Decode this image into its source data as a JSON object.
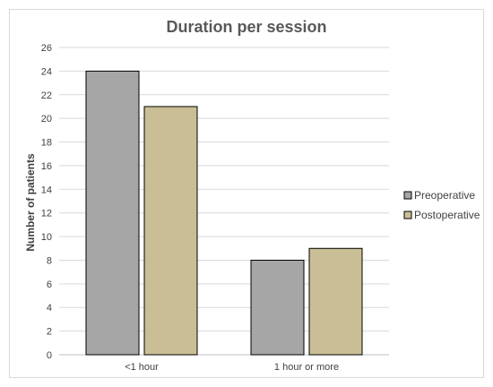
{
  "chart_data": {
    "type": "bar",
    "title": "Duration per session",
    "xlabel": "",
    "ylabel": "Number of patients",
    "categories": [
      "<1 hour",
      "1 hour or more"
    ],
    "series": [
      {
        "name": "Preoperative",
        "values": [
          24,
          8
        ],
        "color": "#a6a6a6"
      },
      {
        "name": "Postoperative",
        "values": [
          21,
          9
        ],
        "color": "#c9be96"
      }
    ],
    "ylim": [
      0,
      26
    ],
    "yticks": [
      0,
      2,
      4,
      6,
      8,
      10,
      12,
      14,
      16,
      18,
      20,
      22,
      24,
      26
    ],
    "grid": true,
    "legend": "right"
  }
}
